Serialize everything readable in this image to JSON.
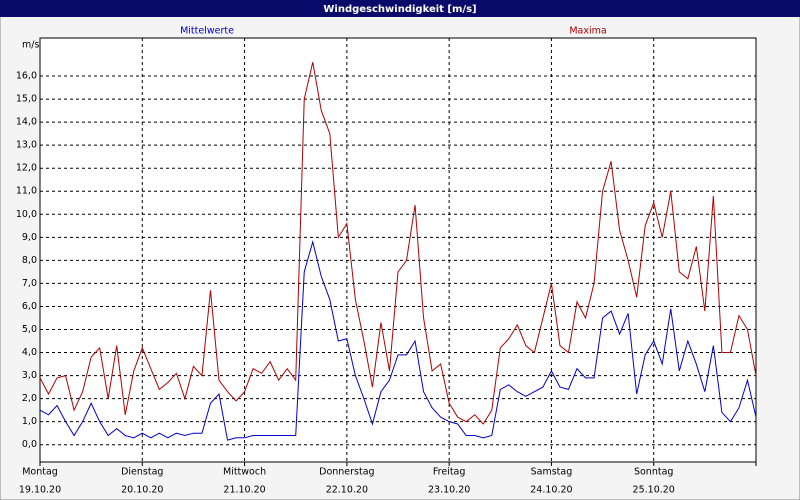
{
  "chart_data": {
    "type": "line",
    "title": "Windgeschwindigkeit [m/s]",
    "ylabel": "m/s",
    "x": [
      0,
      2,
      4,
      6,
      8,
      10,
      12,
      14,
      16,
      18,
      20,
      22,
      24,
      26,
      28,
      30,
      32,
      34,
      36,
      38,
      40,
      42,
      44,
      46,
      48,
      50,
      52,
      54,
      56,
      58,
      60,
      62,
      64,
      66,
      68,
      70,
      72,
      74,
      76,
      78,
      80,
      82,
      84,
      86,
      88,
      90,
      92,
      94,
      96,
      98,
      100,
      102,
      104,
      106,
      108,
      110,
      112,
      114,
      116,
      118,
      120,
      122,
      124,
      126,
      128,
      130,
      132,
      134,
      136,
      138,
      140,
      142,
      144,
      146,
      148,
      150,
      152,
      154,
      156,
      158,
      160,
      162,
      164,
      166,
      168
    ],
    "series": [
      {
        "name": "Mittelwerte",
        "color": "#0000cc",
        "values": [
          1.5,
          1.3,
          1.7,
          1.0,
          0.4,
          1.0,
          1.8,
          1.0,
          0.4,
          0.7,
          0.4,
          0.3,
          0.5,
          0.3,
          0.5,
          0.3,
          0.5,
          0.4,
          0.5,
          0.5,
          1.8,
          2.2,
          0.2,
          0.3,
          0.3,
          0.4,
          0.4,
          0.4,
          0.4,
          0.4,
          0.4,
          7.5,
          8.8,
          7.3,
          6.3,
          4.5,
          4.6,
          3.0,
          2.0,
          0.9,
          2.3,
          2.8,
          3.9,
          3.9,
          4.5,
          2.3,
          1.6,
          1.2,
          1.0,
          0.9,
          0.4,
          0.4,
          0.3,
          0.4,
          2.4,
          2.6,
          2.3,
          2.1,
          2.3,
          2.5,
          3.2,
          2.5,
          2.4,
          3.3,
          2.9,
          2.9,
          5.5,
          5.8,
          4.8,
          5.7,
          2.2,
          3.9,
          4.5,
          3.5,
          5.9,
          3.2,
          4.5,
          3.5,
          2.3,
          4.3,
          1.4,
          1.0,
          1.6,
          2.8,
          1.2
        ]
      },
      {
        "name": "Maxima",
        "color": "#b00000",
        "values": [
          2.9,
          2.2,
          2.9,
          3.0,
          1.5,
          2.3,
          3.8,
          4.2,
          2.0,
          4.3,
          1.3,
          3.2,
          4.2,
          3.3,
          2.4,
          2.7,
          3.1,
          2.0,
          3.4,
          3.0,
          6.7,
          2.8,
          2.3,
          1.9,
          2.3,
          3.3,
          3.1,
          3.6,
          2.8,
          3.3,
          2.8,
          15.0,
          16.6,
          14.5,
          13.5,
          9.0,
          9.6,
          6.3,
          4.5,
          2.5,
          5.3,
          3.2,
          7.5,
          8.0,
          10.4,
          5.5,
          3.2,
          3.5,
          1.8,
          1.2,
          1.0,
          1.3,
          0.9,
          1.5,
          4.2,
          4.6,
          5.2,
          4.3,
          4.0,
          5.5,
          7.0,
          4.3,
          4.0,
          6.2,
          5.5,
          7.0,
          11.0,
          12.3,
          9.3,
          8.0,
          6.4,
          9.5,
          10.5,
          9.0,
          11.0,
          7.5,
          7.2,
          8.6,
          5.8,
          10.8,
          4.0,
          4.0,
          5.6,
          5.0,
          3.0
        ]
      }
    ],
    "xlim": [
      0,
      168
    ],
    "xticks": [
      {
        "value": 0,
        "label": "Montag"
      },
      {
        "value": 24,
        "label": "Dienstag"
      },
      {
        "value": 48,
        "label": "Mittwoch"
      },
      {
        "value": 72,
        "label": "Donnerstag"
      },
      {
        "value": 96,
        "label": "Freitag"
      },
      {
        "value": 120,
        "label": "Samstag"
      },
      {
        "value": 144,
        "label": "Sonntag"
      },
      {
        "value": 168,
        "label": ""
      }
    ],
    "xtick_dates": [
      "19.10.20",
      "20.10.20",
      "21.10.20",
      "22.10.20",
      "23.10.20",
      "24.10.20",
      "25.10.20"
    ],
    "ylim": [
      -0.75,
      17.65
    ],
    "yticks": [
      {
        "value": 0,
        "label": "0,0"
      },
      {
        "value": 1,
        "label": "1,0"
      },
      {
        "value": 2,
        "label": "2,0"
      },
      {
        "value": 3,
        "label": "3,0"
      },
      {
        "value": 4,
        "label": "4,0"
      },
      {
        "value": 5,
        "label": "5,0"
      },
      {
        "value": 6,
        "label": "6,0"
      },
      {
        "value": 7,
        "label": "7,0"
      },
      {
        "value": 8,
        "label": "8,0"
      },
      {
        "value": 9,
        "label": "9,0"
      },
      {
        "value": 10,
        "label": "10,0"
      },
      {
        "value": 11,
        "label": "11,0"
      },
      {
        "value": 12,
        "label": "12,0"
      },
      {
        "value": 13,
        "label": "13,0"
      },
      {
        "value": 14,
        "label": "14,0"
      },
      {
        "value": 15,
        "label": "15,0"
      },
      {
        "value": 16,
        "label": "16,0"
      }
    ],
    "grid": true
  }
}
